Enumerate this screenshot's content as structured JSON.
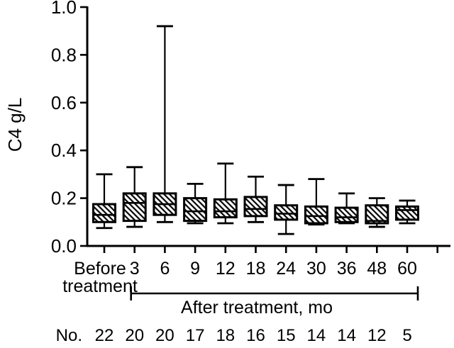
{
  "chart_data": {
    "type": "box",
    "title": "",
    "xlabel": "",
    "ylabel": "C4 g/L",
    "ylim": [
      0,
      1.0
    ],
    "grid": false,
    "yticks": [
      0.0,
      0.2,
      0.4,
      0.6,
      0.8,
      1.0
    ],
    "ytick_labels": [
      "0.0",
      "0.2",
      "0.4",
      "0.6",
      "0.8",
      "1.0"
    ],
    "categories": [
      "Before\ntreatment",
      "3",
      "6",
      "9",
      "12",
      "18",
      "24",
      "30",
      "36",
      "48",
      "60"
    ],
    "boxes": [
      {
        "category": "Before treatment",
        "low": 0.075,
        "q1": 0.1,
        "median": 0.13,
        "q3": 0.175,
        "high": 0.3
      },
      {
        "category": "3",
        "low": 0.08,
        "q1": 0.105,
        "median": 0.18,
        "q3": 0.22,
        "high": 0.33
      },
      {
        "category": "6",
        "low": 0.1,
        "q1": 0.13,
        "median": 0.175,
        "q3": 0.22,
        "high": 0.92
      },
      {
        "category": "9",
        "low": 0.095,
        "q1": 0.105,
        "median": 0.145,
        "q3": 0.2,
        "high": 0.26
      },
      {
        "category": "12",
        "low": 0.095,
        "q1": 0.12,
        "median": 0.145,
        "q3": 0.195,
        "high": 0.345
      },
      {
        "category": "18",
        "low": 0.1,
        "q1": 0.125,
        "median": 0.155,
        "q3": 0.205,
        "high": 0.29
      },
      {
        "category": "24",
        "low": 0.05,
        "q1": 0.11,
        "median": 0.135,
        "q3": 0.17,
        "high": 0.255
      },
      {
        "category": "30",
        "low": 0.09,
        "q1": 0.095,
        "median": 0.125,
        "q3": 0.165,
        "high": 0.28
      },
      {
        "category": "36",
        "low": 0.095,
        "q1": 0.1,
        "median": 0.12,
        "q3": 0.16,
        "high": 0.22
      },
      {
        "category": "48",
        "low": 0.08,
        "q1": 0.095,
        "median": 0.105,
        "q3": 0.17,
        "high": 0.2
      },
      {
        "category": "60",
        "low": 0.095,
        "q1": 0.11,
        "median": 0.15,
        "q3": 0.165,
        "high": 0.19
      }
    ],
    "x_bracket": {
      "label": "After treatment, mo",
      "start_category": "3",
      "end_category": "60"
    },
    "counts_row": {
      "label": "No.",
      "values": [
        "22",
        "20",
        "20",
        "17",
        "18",
        "16",
        "15",
        "14",
        "14",
        "12",
        "5"
      ]
    },
    "box_style": "diagonal-hatch",
    "colors": {
      "ink": "#000000",
      "background": "#ffffff"
    }
  }
}
